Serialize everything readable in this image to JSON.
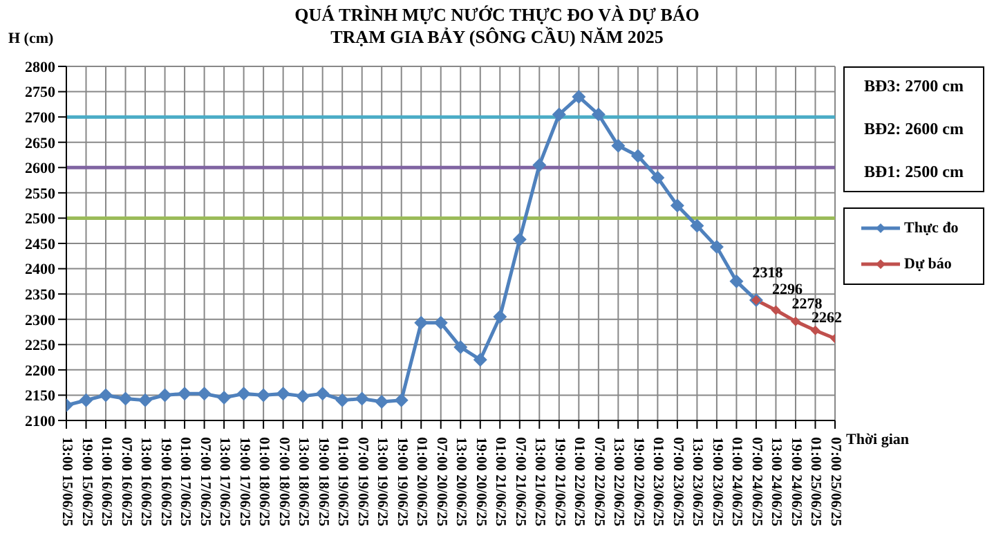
{
  "chart_data": {
    "type": "line",
    "title": "QUÁ TRÌNH MỰC NƯỚC THỰC ĐO VÀ DỰ BÁO\nTRẠM GIA BẢY (SÔNG CẦU) NĂM 2025",
    "ylabel": "H (cm)",
    "xlabel": "Thời gian",
    "categories": [
      "13:00 15/06/25",
      "19:00 15/06/25",
      "01:00 16/06/25",
      "07:00 16/06/25",
      "13:00 16/06/25",
      "19:00 16/06/25",
      "01:00 17/06/25",
      "07:00 17/06/25",
      "13:00 17/06/25",
      "19:00 17/06/25",
      "01:00 18/06/25",
      "07:00 18/06/25",
      "13:00 18/06/25",
      "19:00 18/06/25",
      "01:00 19/06/25",
      "07:00 19/06/25",
      "13:00 19/06/25",
      "19:00 19/06/25",
      "01:00 20/06/25",
      "07:00 20/06/25",
      "13:00 20/06/25",
      "19:00 20/06/25",
      "01:00 21/06/25",
      "07:00 21/06/25",
      "13:00 21/06/25",
      "19:00 21/06/25",
      "01:00 22/06/25",
      "07:00 22/06/25",
      "13:00 22/06/25",
      "19:00 22/06/25",
      "01:00 23/06/25",
      "07:00 23/06/25",
      "13:00 23/06/25",
      "19:00 23/06/25",
      "01:00 24/06/25",
      "07:00 24/06/25",
      "13:00 24/06/25",
      "19:00 24/06/25",
      "01:00 25/06/25",
      "07:00 25/06/25"
    ],
    "series": [
      {
        "name": "Thực đo",
        "color": "#4f81bd",
        "values": [
          2130,
          2140,
          2150,
          2143,
          2140,
          2150,
          2153,
          2153,
          2145,
          2153,
          2150,
          2153,
          2148,
          2153,
          2140,
          2143,
          2137,
          2140,
          2293,
          2293,
          2245,
          2220,
          2305,
          2458,
          2605,
          2705,
          2740,
          2705,
          2643,
          2623,
          2580,
          2525,
          2485,
          2443,
          2375,
          2338,
          null,
          null,
          null,
          null
        ]
      },
      {
        "name": "Dự báo",
        "color": "#c0504d",
        "values": [
          null,
          null,
          null,
          null,
          null,
          null,
          null,
          null,
          null,
          null,
          null,
          null,
          null,
          null,
          null,
          null,
          null,
          null,
          null,
          null,
          null,
          null,
          null,
          null,
          null,
          null,
          null,
          null,
          null,
          null,
          null,
          null,
          null,
          null,
          null,
          2338,
          2318,
          2296,
          2278,
          2262
        ],
        "value_labels": [
          null,
          null,
          null,
          null,
          null,
          null,
          null,
          null,
          null,
          null,
          null,
          null,
          null,
          null,
          null,
          null,
          null,
          null,
          null,
          null,
          null,
          null,
          null,
          null,
          null,
          null,
          null,
          null,
          null,
          null,
          null,
          null,
          null,
          null,
          null,
          null,
          "2318",
          "2296",
          "2278",
          "2262"
        ]
      }
    ],
    "ylim": [
      2100,
      2800
    ],
    "yticks": [
      2100,
      2150,
      2200,
      2250,
      2300,
      2350,
      2400,
      2450,
      2500,
      2550,
      2600,
      2650,
      2700,
      2750,
      2800
    ],
    "ref_lines": [
      {
        "axis": "y",
        "value": 2700,
        "label": "BĐ3: 2700 cm",
        "color": "#4bacc6"
      },
      {
        "axis": "y",
        "value": 2600,
        "label": "BĐ2: 2600 cm",
        "color": "#8064a2"
      },
      {
        "axis": "y",
        "value": 2500,
        "label": "BĐ1: 2500 cm",
        "color": "#9bbb59"
      }
    ],
    "grid": true,
    "legend": "right",
    "marker": "diamond",
    "line_style": "solid"
  }
}
